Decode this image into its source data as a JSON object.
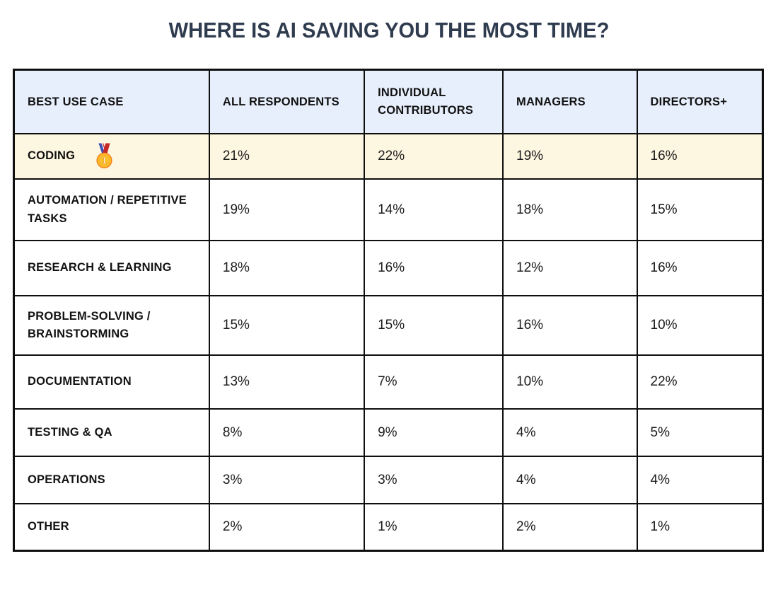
{
  "page": {
    "title": "WHERE IS AI SAVING YOU THE MOST TIME?"
  },
  "colors": {
    "title": "#2f3b4e",
    "header_bg": "#e7effc",
    "highlight_bg": "#fdf6e0",
    "border": "#0f0f0f"
  },
  "table": {
    "columns": [
      "BEST USE CASE",
      "ALL RESPONDENTS",
      "INDIVIDUAL CONTRIBUTORS",
      "MANAGERS",
      "DIRECTORS+"
    ],
    "rows": [
      {
        "label": "CODING",
        "medal": "first-place-medal",
        "highlight": true,
        "values": [
          "21%",
          "22%",
          "19%",
          "16%"
        ]
      },
      {
        "label": "AUTOMATION / REPETITIVE TASKS",
        "values": [
          "19%",
          "14%",
          "18%",
          "15%"
        ]
      },
      {
        "label": "RESEARCH & LEARNING",
        "values": [
          "18%",
          "16%",
          "12%",
          "16%"
        ]
      },
      {
        "label": "PROBLEM-SOLVING / BRAINSTORMING",
        "values": [
          "15%",
          "15%",
          "16%",
          "10%"
        ]
      },
      {
        "label": "DOCUMENTATION",
        "values": [
          "13%",
          "7%",
          "10%",
          "22%"
        ]
      },
      {
        "label": "TESTING & QA",
        "values": [
          "8%",
          "9%",
          "4%",
          "5%"
        ]
      },
      {
        "label": "OPERATIONS",
        "values": [
          "3%",
          "3%",
          "4%",
          "4%"
        ]
      },
      {
        "label": "OTHER",
        "values": [
          "2%",
          "1%",
          "2%",
          "1%"
        ]
      }
    ]
  },
  "chart_data": {
    "type": "table",
    "title": "WHERE IS AI SAVING YOU THE MOST TIME?",
    "columns": [
      "BEST USE CASE",
      "ALL RESPONDENTS",
      "INDIVIDUAL CONTRIBUTORS",
      "MANAGERS",
      "DIRECTORS+"
    ],
    "categories": [
      "CODING",
      "AUTOMATION / REPETITIVE TASKS",
      "RESEARCH & LEARNING",
      "PROBLEM-SOLVING / BRAINSTORMING",
      "DOCUMENTATION",
      "TESTING & QA",
      "OPERATIONS",
      "OTHER"
    ],
    "series": [
      {
        "name": "ALL RESPONDENTS",
        "values": [
          21,
          19,
          18,
          15,
          13,
          8,
          3,
          2
        ]
      },
      {
        "name": "INDIVIDUAL CONTRIBUTORS",
        "values": [
          22,
          14,
          16,
          15,
          7,
          9,
          3,
          1
        ]
      },
      {
        "name": "MANAGERS",
        "values": [
          19,
          18,
          12,
          16,
          10,
          4,
          4,
          2
        ]
      },
      {
        "name": "DIRECTORS+",
        "values": [
          16,
          15,
          16,
          10,
          22,
          5,
          4,
          1
        ]
      }
    ],
    "unit": "%",
    "highlighted_category": "CODING",
    "highlight_marker": "gold-medal-1st-place"
  }
}
